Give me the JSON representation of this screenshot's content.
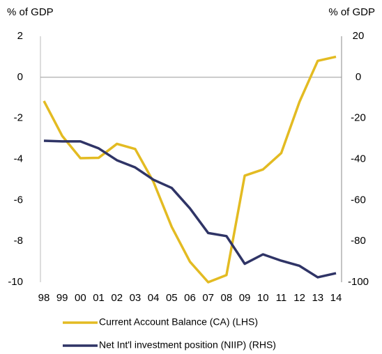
{
  "chart_data": {
    "type": "line",
    "y_label": "% of GDP",
    "y2_label": "% of GDP",
    "categories": [
      "98",
      "99",
      "00",
      "01",
      "02",
      "03",
      "04",
      "05",
      "06",
      "07",
      "08",
      "09",
      "10",
      "11",
      "12",
      "13",
      "14"
    ],
    "series": [
      {
        "name": "Current Account Balance (CA) (LHS)",
        "color": "#e3bb22",
        "axis": "y",
        "values": [
          -1.16,
          -2.86,
          -3.95,
          -3.93,
          -3.25,
          -3.5,
          -5.1,
          -7.3,
          -9.0,
          -10.0,
          -9.65,
          -4.8,
          -4.5,
          -3.7,
          -1.2,
          0.8,
          1.0
        ]
      },
      {
        "name": "Net Int'l investment position (NIIP) (RHS)",
        "color": "#2f3466",
        "axis": "y2",
        "values": [
          -31,
          -31.3,
          -31.3,
          -34.7,
          -40.5,
          -44,
          -50,
          -54,
          -64,
          -76,
          -77.5,
          -91,
          -86.4,
          -89.5,
          -92,
          -97.6,
          -95.6
        ]
      }
    ],
    "ylim": [
      -10,
      2
    ],
    "yticks": [
      2,
      0,
      -2,
      -4,
      -6,
      -8,
      -10
    ],
    "y2lim": [
      -100,
      20
    ],
    "y2ticks": [
      20,
      0,
      -20,
      -40,
      -60,
      -80,
      -100
    ]
  }
}
